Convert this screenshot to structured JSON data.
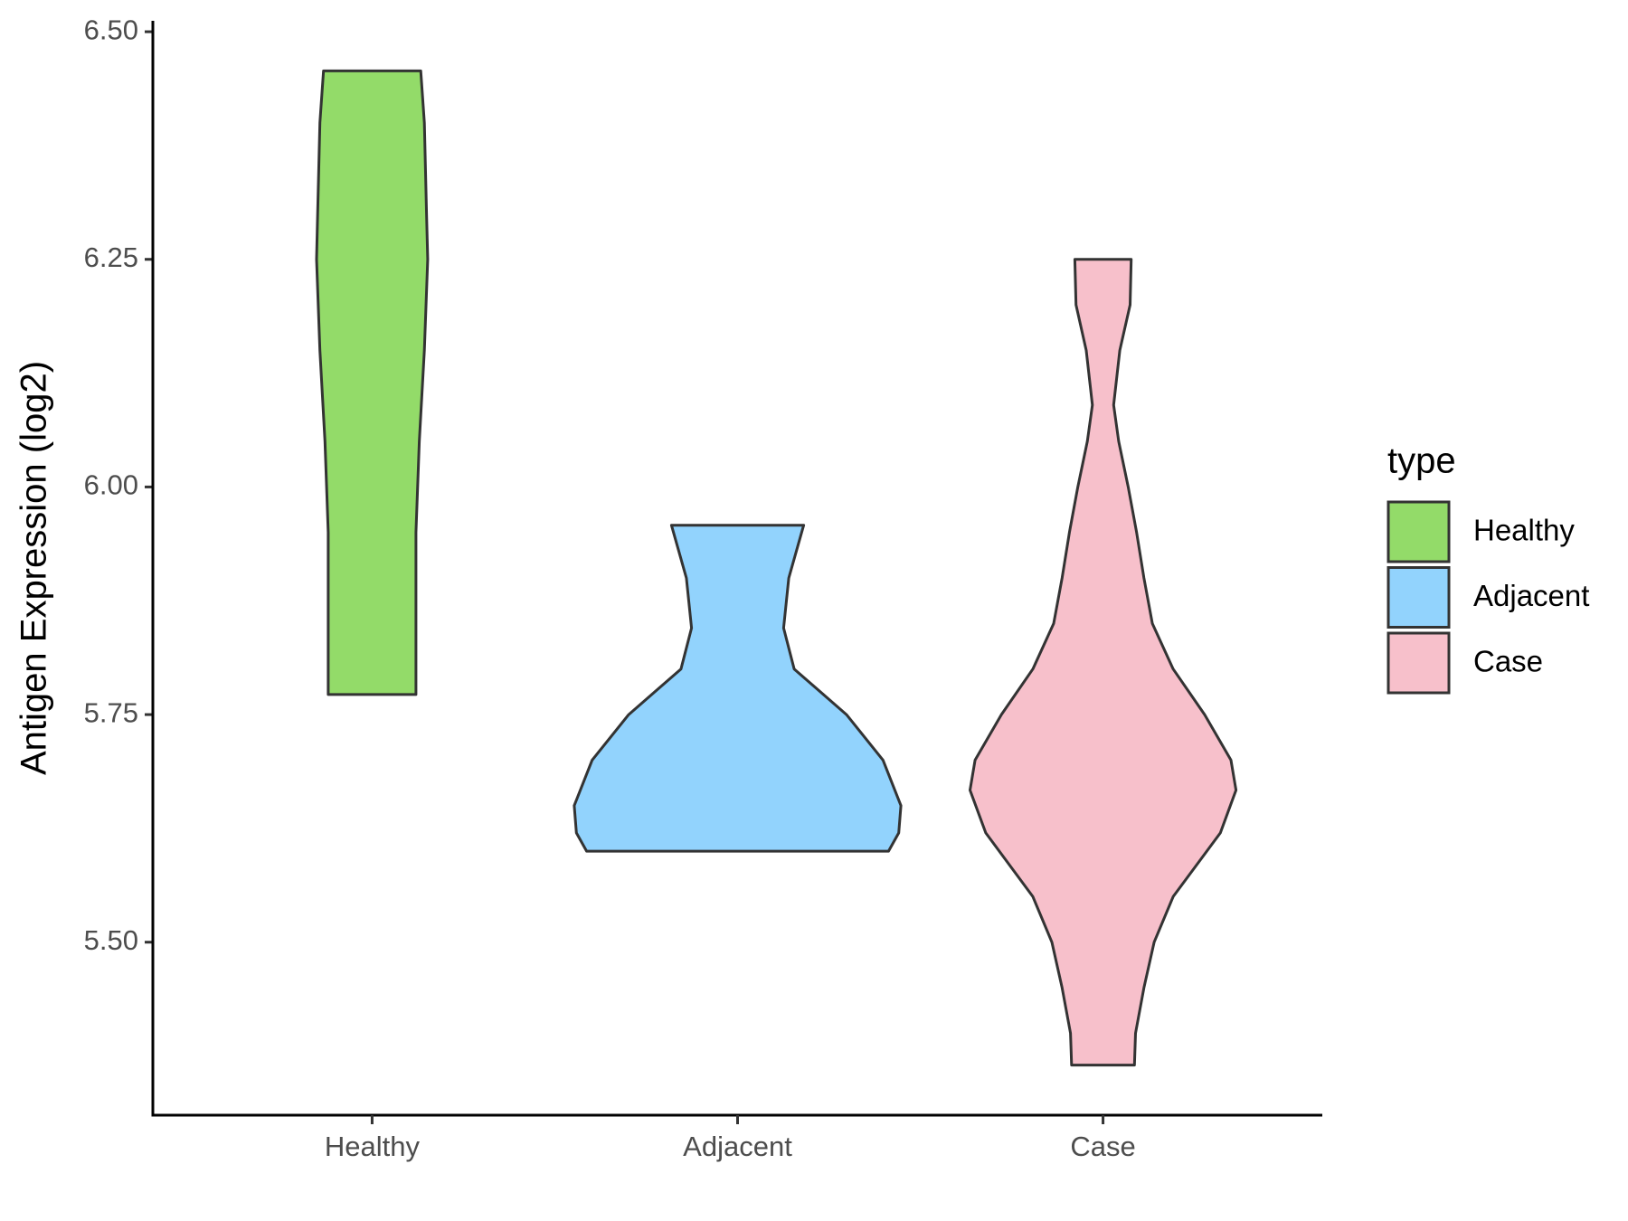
{
  "chart_data": {
    "type": "violin",
    "y_label": "Antigen Expression (log2)",
    "categories": [
      "Healthy",
      "Adjacent",
      "Case"
    ],
    "legend_title": "type",
    "legend_position": "right",
    "ylim": [
      5.31,
      6.512
    ],
    "yticks": [
      {
        "value": 5.5,
        "label": "5.50"
      },
      5.75,
      {
        "value": 6.0,
        "label": "6.00"
      },
      6.25,
      {
        "value": 6.5,
        "label": "6.50"
      }
    ],
    "series": [
      {
        "name": "Healthy",
        "color": "#93db69",
        "y": [
          5.772,
          5.85,
          5.95,
          6.05,
          6.15,
          6.25,
          6.3,
          6.4,
          6.457
        ],
        "half_width": [
          0.12,
          0.12,
          0.12,
          0.129,
          0.143,
          0.152,
          0.149,
          0.143,
          0.133
        ]
      },
      {
        "name": "Adjacent",
        "color": "#92d3fd",
        "y": [
          5.6,
          5.62,
          5.65,
          5.7,
          5.75,
          5.8,
          5.845,
          5.9,
          5.958
        ],
        "half_width": [
          0.413,
          0.441,
          0.447,
          0.398,
          0.298,
          0.155,
          0.126,
          0.14,
          0.181
        ]
      },
      {
        "name": "Case",
        "color": "#f7c0cb",
        "y": [
          5.365,
          5.4,
          5.45,
          5.5,
          5.55,
          5.62,
          5.667,
          5.7,
          5.75,
          5.8,
          5.85,
          5.9,
          5.95,
          6.0,
          6.05,
          6.09,
          6.15,
          6.2,
          6.25
        ],
        "half_width": [
          0.086,
          0.089,
          0.112,
          0.14,
          0.192,
          0.321,
          0.364,
          0.35,
          0.278,
          0.192,
          0.135,
          0.112,
          0.092,
          0.069,
          0.043,
          0.029,
          0.046,
          0.074,
          0.077
        ]
      }
    ]
  }
}
